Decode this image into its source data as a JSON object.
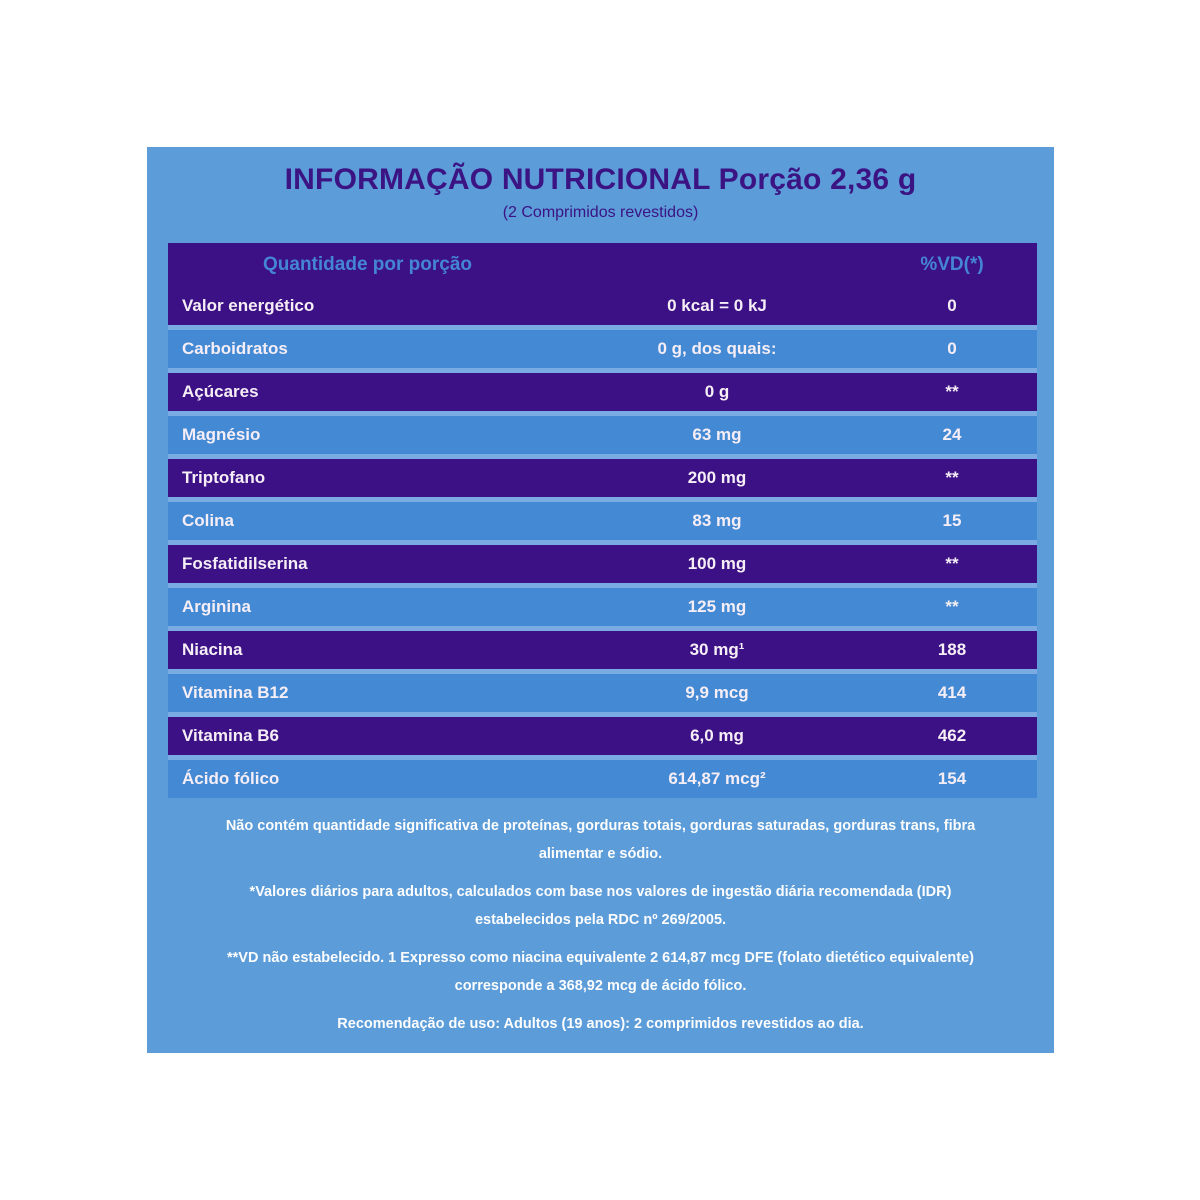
{
  "colors": {
    "card_bg": "#5b9cd9",
    "row_dark": "#3c1185",
    "row_blue": "#4489d3",
    "row_gap": "#7aabe3",
    "title_ink": "#3b1383",
    "header_text": "#4585d6",
    "row_text": "#f6eef6",
    "footnote_text": "#fdfdfd"
  },
  "card": {
    "title": "INFORMAÇÃO NUTRICIONAL Porção 2,36 g",
    "subtitle": "(2 Comprimidos revestidos)"
  },
  "table": {
    "header": {
      "quantity_label": "Quantidade por porção",
      "vd_label": "%VD(*)"
    },
    "rows": [
      {
        "label": "Valor energético",
        "amount": "0 kcal = 0 kJ",
        "vd": "0",
        "bg": "dark"
      },
      {
        "label": "Carboidratos",
        "amount": "0 g, dos quais:",
        "vd": "0",
        "bg": "blue"
      },
      {
        "label": "Açúcares",
        "amount": "0 g",
        "vd": "**",
        "bg": "dark"
      },
      {
        "label": "Magnésio",
        "amount": "63 mg",
        "vd": "24",
        "bg": "blue"
      },
      {
        "label": "Triptofano",
        "amount": "200 mg",
        "vd": "**",
        "bg": "dark"
      },
      {
        "label": "Colina",
        "amount": "83 mg",
        "vd": "15",
        "bg": "blue"
      },
      {
        "label": "Fosfatidilserina",
        "amount": "100 mg",
        "vd": "**",
        "bg": "dark"
      },
      {
        "label": "Arginina",
        "amount": "125 mg",
        "vd": "**",
        "bg": "blue"
      },
      {
        "label": "Niacina",
        "amount": "30 mg¹",
        "vd": "188",
        "bg": "dark"
      },
      {
        "label": "Vitamina B12",
        "amount": "9,9 mcg",
        "vd": "414",
        "bg": "blue"
      },
      {
        "label": "Vitamina B6",
        "amount": "6,0 mg",
        "vd": "462",
        "bg": "dark"
      },
      {
        "label": "Ácido fólico",
        "amount": "614,87 mcg²",
        "vd": "154",
        "bg": "blue"
      }
    ]
  },
  "footnotes": [
    "Não contém quantidade significativa de proteínas, gorduras totais, gorduras saturadas, gorduras trans, fibra alimentar e sódio.",
    "*Valores diários para adultos, calculados com base nos valores de ingestão diária recomendada (IDR) estabelecidos pela RDC nº 269/2005.",
    "**VD não estabelecido. 1 Expresso como niacina equivalente 2 614,87 mcg DFE (folato dietético equivalente) corresponde a 368,92 mcg de ácido fólico.",
    "Recomendação de uso: Adultos (19 anos): 2 comprimidos revestidos ao dia."
  ]
}
